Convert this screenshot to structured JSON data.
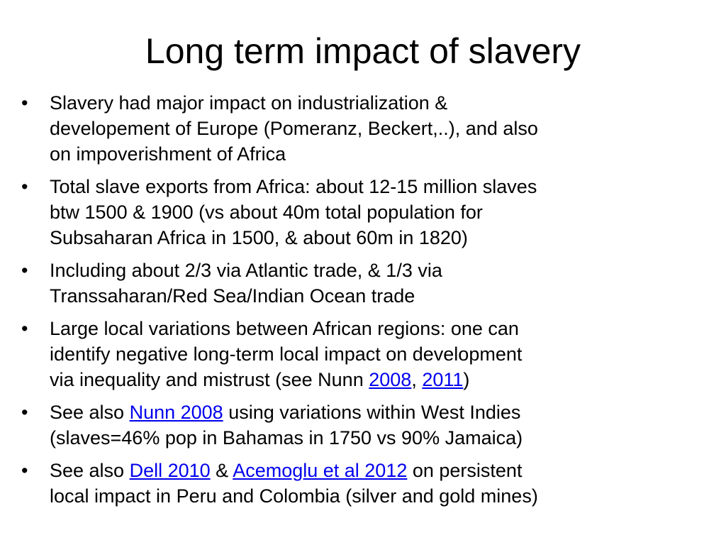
{
  "title": "Long term impact of slavery",
  "bullets": [
    {
      "lines": [
        [
          {
            "text": "Slavery had major impact on industrialization &"
          }
        ],
        [
          {
            "text": "developement of Europe (Pomeranz, Beckert,..), and also"
          }
        ],
        [
          {
            "text": "on impoverishment of Africa"
          }
        ]
      ]
    },
    {
      "lines": [
        [
          {
            "text": "Total slave exports from Africa: about 12-15 million slaves"
          }
        ],
        [
          {
            "text": "btw 1500 & 1900 (vs about 40m total population for"
          }
        ],
        [
          {
            "text": "Subsaharan Africa in 1500, & about 60m in 1820)"
          }
        ]
      ]
    },
    {
      "lines": [
        [
          {
            "text": "Including about 2/3 via Atlantic trade, & 1/3 via"
          }
        ],
        [
          {
            "text": "Transsaharan/Red Sea/Indian Ocean trade"
          }
        ]
      ]
    },
    {
      "lines": [
        [
          {
            "text": "Large local variations between African regions: one can"
          }
        ],
        [
          {
            "text": "identify negative long-term local impact on development"
          }
        ],
        [
          {
            "text": "via inequality and mistrust (see Nunn "
          },
          {
            "text": "2008",
            "link": true
          },
          {
            "text": ", "
          },
          {
            "text": "2011",
            "link": true
          },
          {
            "text": ")"
          }
        ]
      ]
    },
    {
      "lines": [
        [
          {
            "text": "See also "
          },
          {
            "text": "Nunn 2008",
            "link": true
          },
          {
            "text": " using variations within West Indies"
          }
        ],
        [
          {
            "text": "(slaves=46% pop in Bahamas in 1750 vs 90% Jamaica)"
          }
        ]
      ]
    },
    {
      "lines": [
        [
          {
            "text": "See also "
          },
          {
            "text": "Dell 2010",
            "link": true
          },
          {
            "text": " & "
          },
          {
            "text": "Acemoglu et al 2012",
            "link": true
          },
          {
            "text": " on persistent"
          }
        ],
        [
          {
            "text": "local impact in Peru and Colombia (silver and gold mines)"
          }
        ]
      ]
    }
  ]
}
